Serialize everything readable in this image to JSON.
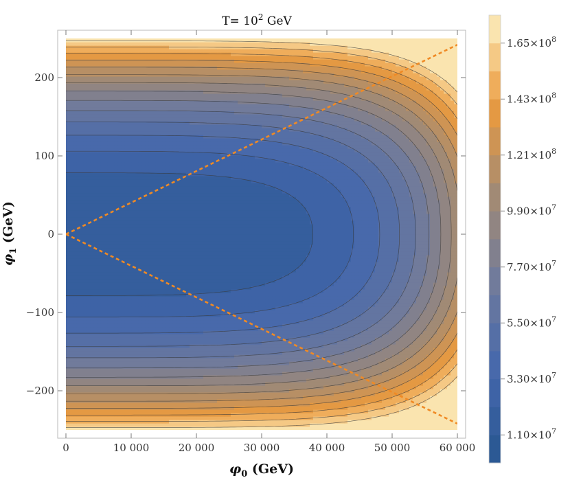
{
  "chart_data": {
    "type": "contour",
    "title": {
      "prefix": "T= 10",
      "sup": "2",
      "suffix": "  GeV"
    },
    "xlabel": {
      "sym": "φ",
      "sub": "0",
      "unit": " (GeV)"
    },
    "ylabel": {
      "sym": "φ",
      "sub": "1",
      "unit": " (GeV)"
    },
    "xlim": [
      0,
      60000
    ],
    "ylim": [
      -250,
      250
    ],
    "x_ticks": [
      {
        "value": 0,
        "label": "0"
      },
      {
        "value": 10000,
        "label": "10 000"
      },
      {
        "value": 20000,
        "label": "20 000"
      },
      {
        "value": 30000,
        "label": "30 000"
      },
      {
        "value": 40000,
        "label": "40 000"
      },
      {
        "value": 50000,
        "label": "50 000"
      },
      {
        "value": 60000,
        "label": "60 000"
      }
    ],
    "y_ticks": [
      {
        "value": 200,
        "label": "200"
      },
      {
        "value": 100,
        "label": "100"
      },
      {
        "value": 0,
        "label": "0"
      },
      {
        "value": -100,
        "label": "−100"
      },
      {
        "value": -200,
        "label": "−200"
      }
    ],
    "colorbar": {
      "range": [
        0,
        176000000.0
      ],
      "levels": 16,
      "ticks": [
        {
          "value": 11000000.0,
          "mant": "1.10",
          "exp": "7"
        },
        {
          "value": 33000000.0,
          "mant": "3.30",
          "exp": "7"
        },
        {
          "value": 55000000.0,
          "mant": "5.50",
          "exp": "7"
        },
        {
          "value": 77000000.0,
          "mant": "7.70",
          "exp": "7"
        },
        {
          "value": 99000000.0,
          "mant": "9.90",
          "exp": "7"
        },
        {
          "value": 121000000.0,
          "mant": "1.21",
          "exp": "8"
        },
        {
          "value": 143000000.0,
          "mant": "1.43",
          "exp": "8"
        },
        {
          "value": 165000000.0,
          "mant": "1.65",
          "exp": "8"
        }
      ]
    },
    "colors": [
      "#27568f",
      "#4467ad",
      "#6f7a9c",
      "#a38b74",
      "#eb9a3e",
      "#fdf2c4"
    ],
    "overlay_lines": [
      {
        "color": "#f08a24",
        "style": "dashed",
        "points": [
          [
            0,
            0
          ],
          [
            60000,
            242
          ]
        ]
      },
      {
        "color": "#f08a24",
        "style": "dashed",
        "points": [
          [
            0,
            0
          ],
          [
            60000,
            -242
          ]
        ]
      }
    ]
  }
}
